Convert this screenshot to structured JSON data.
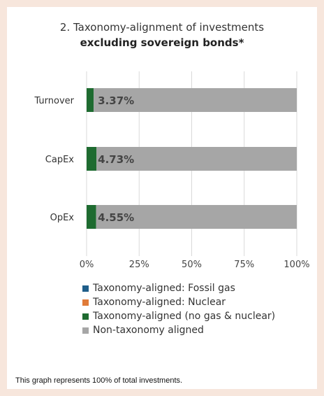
{
  "chart_data": {
    "type": "bar",
    "orientation": "horizontal",
    "stacked": true,
    "title": "2. Taxonomy-alignment of investments",
    "subtitle": "excluding sovereign bonds*",
    "categories": [
      "Turnover",
      "CapEx",
      "OpEx"
    ],
    "series": [
      {
        "name": "Taxonomy-aligned: Fossil gas",
        "color": "#1f5e8a",
        "values": [
          0,
          0,
          0
        ]
      },
      {
        "name": "Taxonomy-aligned: Nuclear",
        "color": "#e07b39",
        "values": [
          0,
          0,
          0
        ]
      },
      {
        "name": "Taxonomy-aligned (no gas & nuclear)",
        "color": "#1e6b30",
        "values": [
          3.37,
          4.73,
          4.55
        ]
      },
      {
        "name": "Non-taxonomy aligned",
        "color": "#a6a6a6",
        "values": [
          96.63,
          95.27,
          95.45
        ]
      }
    ],
    "data_labels": [
      "3.37%",
      "4.73%",
      "4.55%"
    ],
    "x_ticks": [
      "0%",
      "25%",
      "50%",
      "75%",
      "100%"
    ],
    "xlim": [
      0,
      100
    ],
    "grid": true,
    "legend_position": "bottom"
  },
  "footnote": "This graph represents 100% of total investments."
}
